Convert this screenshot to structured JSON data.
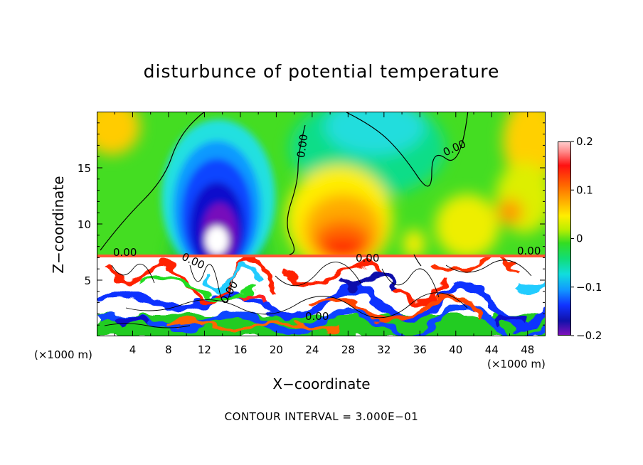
{
  "chart_data": {
    "type": "heatmap",
    "title": "disturbunce of potential temperature",
    "xlabel": "X−coordinate",
    "ylabel": "Z−coordinate",
    "x_unit_note": "(×1000 m)",
    "z_unit_note": "(×1000 m)",
    "xlim": [
      0,
      50
    ],
    "ylim": [
      0,
      20
    ],
    "x_ticks": [
      "4",
      "8",
      "12",
      "16",
      "20",
      "24",
      "28",
      "32",
      "36",
      "40",
      "44",
      "48"
    ],
    "y_ticks": [
      "5",
      "10",
      "15"
    ],
    "contour_labels": [
      "0.00",
      "0.00",
      "0.00",
      "0.00",
      "0.00",
      "0.00",
      "0.00",
      "0.00"
    ],
    "colorbar": {
      "range": [
        -0.2,
        0.2
      ],
      "tick_labels": [
        "0.2",
        "0.1",
        "0",
        "−0.1",
        "−0.2"
      ]
    },
    "footer": "CONTOUR INTERVAL = 3.000E−01",
    "features": [
      {
        "kind": "cold_plume",
        "x": 14,
        "z": 10,
        "value": -0.2
      },
      {
        "kind": "warm_region",
        "x": 28,
        "z": 10,
        "value": 0.12
      },
      {
        "kind": "cool_top",
        "x": 32,
        "z": 19,
        "value": -0.08
      }
    ]
  }
}
